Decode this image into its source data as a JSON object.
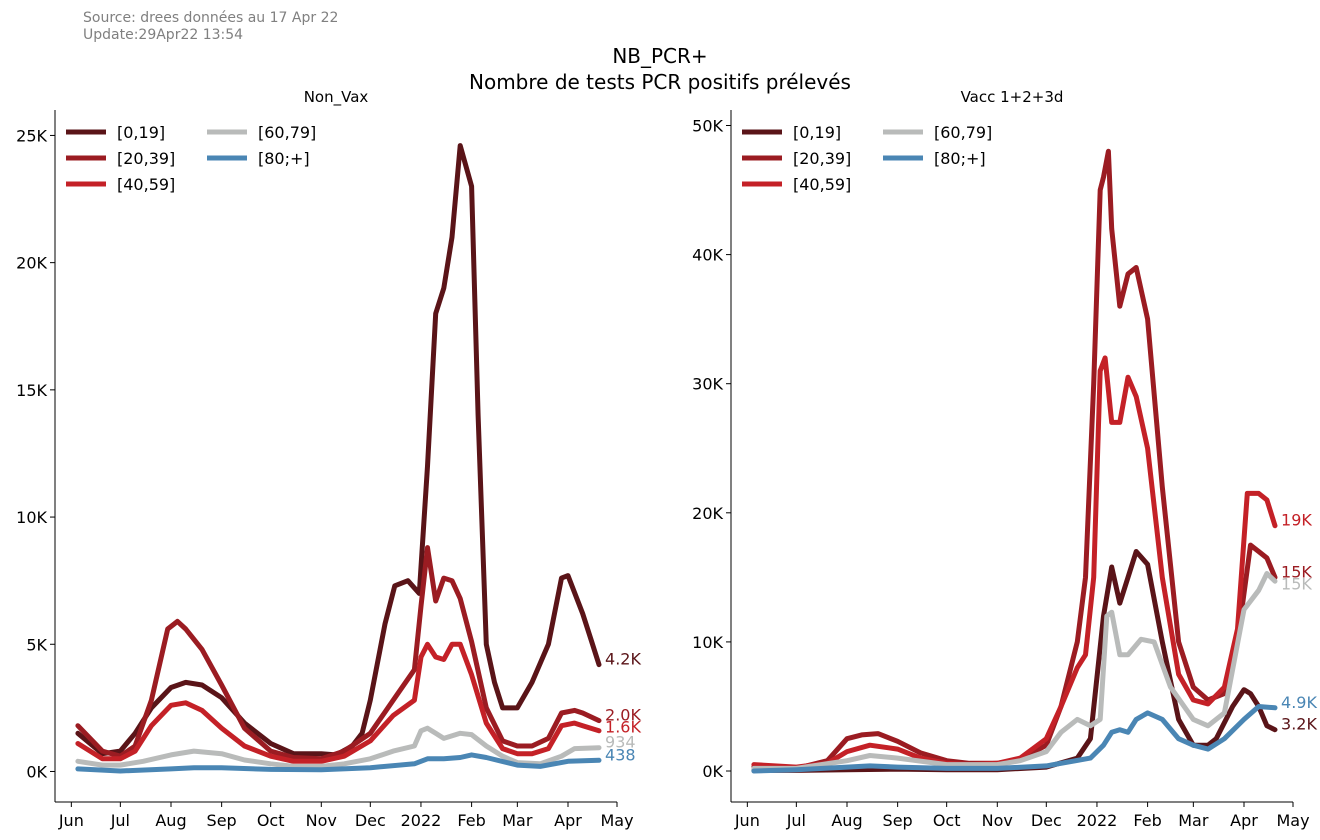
{
  "header": {
    "source": "Source: drees données au 17 Apr 22",
    "update": "Update:29Apr22 13:54",
    "title_line1": "NB_PCR+",
    "title_line2": "Nombre de tests PCR positifs prélevés"
  },
  "colors": {
    "[0,19]": "#5a1418",
    "[20,39]": "#9b1c22",
    "[40,59]": "#c42127",
    "[60,79]": "#b9bbba",
    "[80;+]": "#4a86b4"
  },
  "chart_data": [
    {
      "type": "line",
      "title": "Non_Vax",
      "xlabel": "",
      "ylabel": "",
      "x_ticks": [
        "Jun",
        "Jul",
        "Aug",
        "Sep",
        "Oct",
        "Nov",
        "Dec",
        "2022",
        "Feb",
        "Mar",
        "Apr",
        "May"
      ],
      "x_tick_dates": [
        "2021-06-01",
        "2021-07-01",
        "2021-08-01",
        "2021-09-01",
        "2021-10-01",
        "2021-11-01",
        "2021-12-01",
        "2022-01-01",
        "2022-02-01",
        "2022-03-01",
        "2022-04-01",
        "2022-05-01"
      ],
      "xlim": [
        "2021-05-22",
        "2022-05-01"
      ],
      "y_ticks": [
        0,
        5000,
        10000,
        15000,
        20000,
        25000
      ],
      "y_tick_labels": [
        "0K",
        "5K",
        "10K",
        "15K",
        "20K",
        "25K"
      ],
      "ylim": [
        -1200,
        26000
      ],
      "grid": false,
      "legend": "top-left",
      "series": [
        {
          "name": "[0,19]",
          "end_label": "4.2K",
          "x": [
            "2021-06-05",
            "2021-06-20",
            "2021-07-01",
            "2021-07-10",
            "2021-07-20",
            "2021-08-01",
            "2021-08-10",
            "2021-08-20",
            "2021-09-01",
            "2021-09-15",
            "2021-10-01",
            "2021-10-15",
            "2021-11-01",
            "2021-11-10",
            "2021-11-20",
            "2021-11-26",
            "2021-12-01",
            "2021-12-10",
            "2021-12-16",
            "2021-12-24",
            "2021-12-31",
            "2022-01-05",
            "2022-01-10",
            "2022-01-15",
            "2022-01-20",
            "2022-01-25",
            "2022-02-01",
            "2022-02-05",
            "2022-02-10",
            "2022-02-15",
            "2022-02-20",
            "2022-03-01",
            "2022-03-10",
            "2022-03-20",
            "2022-03-28",
            "2022-04-01",
            "2022-04-10",
            "2022-04-15",
            "2022-04-20"
          ],
          "y": [
            1500,
            700,
            800,
            1500,
            2500,
            3300,
            3500,
            3400,
            2900,
            1900,
            1100,
            700,
            700,
            650,
            1000,
            1500,
            2800,
            5800,
            7300,
            7500,
            7000,
            12000,
            18000,
            19000,
            21000,
            24600,
            23000,
            14000,
            5000,
            3500,
            2500,
            2500,
            3500,
            5000,
            7600,
            7700,
            6200,
            5200,
            4200
          ]
        },
        {
          "name": "[20,39]",
          "end_label": "2.0K",
          "x": [
            "2021-06-05",
            "2021-06-20",
            "2021-07-01",
            "2021-07-10",
            "2021-07-20",
            "2021-07-30",
            "2021-08-05",
            "2021-08-10",
            "2021-08-20",
            "2021-09-01",
            "2021-09-15",
            "2021-10-01",
            "2021-10-15",
            "2021-11-01",
            "2021-11-15",
            "2021-12-01",
            "2021-12-15",
            "2021-12-28",
            "2022-01-01",
            "2022-01-05",
            "2022-01-10",
            "2022-01-15",
            "2022-01-20",
            "2022-01-25",
            "2022-02-01",
            "2022-02-10",
            "2022-02-20",
            "2022-03-01",
            "2022-03-10",
            "2022-03-20",
            "2022-03-28",
            "2022-04-05",
            "2022-04-10",
            "2022-04-20"
          ],
          "y": [
            1800,
            800,
            600,
            1000,
            2800,
            5600,
            5900,
            5600,
            4800,
            3400,
            1700,
            800,
            550,
            500,
            800,
            1500,
            2800,
            4000,
            6500,
            8800,
            6700,
            7600,
            7500,
            6800,
            5100,
            2500,
            1200,
            1000,
            1000,
            1300,
            2300,
            2400,
            2300,
            2000
          ]
        },
        {
          "name": "[40,59]",
          "end_label": "1.6K",
          "x": [
            "2021-06-05",
            "2021-06-20",
            "2021-07-01",
            "2021-07-10",
            "2021-07-20",
            "2021-08-01",
            "2021-08-10",
            "2021-08-20",
            "2021-09-01",
            "2021-09-15",
            "2021-10-01",
            "2021-10-15",
            "2021-11-01",
            "2021-11-15",
            "2021-12-01",
            "2021-12-15",
            "2021-12-28",
            "2022-01-01",
            "2022-01-05",
            "2022-01-10",
            "2022-01-15",
            "2022-01-20",
            "2022-01-25",
            "2022-02-01",
            "2022-02-10",
            "2022-02-20",
            "2022-03-01",
            "2022-03-10",
            "2022-03-20",
            "2022-03-28",
            "2022-04-05",
            "2022-04-10",
            "2022-04-20"
          ],
          "y": [
            1100,
            500,
            500,
            800,
            1800,
            2600,
            2700,
            2400,
            1700,
            1000,
            600,
            400,
            400,
            600,
            1200,
            2200,
            2800,
            4500,
            5000,
            4500,
            4400,
            5000,
            5000,
            3800,
            1900,
            900,
            700,
            700,
            900,
            1800,
            1900,
            1800,
            1600
          ]
        },
        {
          "name": "[60,79]",
          "end_label": "934",
          "x": [
            "2021-06-05",
            "2021-06-20",
            "2021-07-01",
            "2021-07-15",
            "2021-08-01",
            "2021-08-15",
            "2021-09-01",
            "2021-09-15",
            "2021-10-01",
            "2021-10-15",
            "2021-11-01",
            "2021-11-15",
            "2021-12-01",
            "2021-12-15",
            "2021-12-28",
            "2022-01-01",
            "2022-01-05",
            "2022-01-10",
            "2022-01-15",
            "2022-01-25",
            "2022-02-01",
            "2022-02-10",
            "2022-02-20",
            "2022-03-01",
            "2022-03-15",
            "2022-03-28",
            "2022-04-05",
            "2022-04-20"
          ],
          "y": [
            400,
            250,
            250,
            400,
            650,
            800,
            700,
            450,
            300,
            200,
            200,
            300,
            500,
            800,
            1000,
            1600,
            1700,
            1500,
            1300,
            1500,
            1450,
            1000,
            600,
            350,
            300,
            600,
            900,
            934
          ]
        },
        {
          "name": "[80;+]",
          "end_label": "438",
          "x": [
            "2021-06-05",
            "2021-07-01",
            "2021-08-01",
            "2021-08-15",
            "2021-09-01",
            "2021-10-01",
            "2021-11-01",
            "2021-12-01",
            "2021-12-28",
            "2022-01-05",
            "2022-01-15",
            "2022-01-25",
            "2022-02-01",
            "2022-02-10",
            "2022-03-01",
            "2022-03-15",
            "2022-04-01",
            "2022-04-20"
          ],
          "y": [
            100,
            20,
            100,
            150,
            150,
            80,
            70,
            150,
            300,
            500,
            500,
            550,
            650,
            550,
            250,
            200,
            400,
            438
          ]
        }
      ]
    },
    {
      "type": "line",
      "title": "Vacc 1+2+3d",
      "xlabel": "",
      "ylabel": "",
      "x_ticks": [
        "Jun",
        "Jul",
        "Aug",
        "Sep",
        "Oct",
        "Nov",
        "Dec",
        "2022",
        "Feb",
        "Mar",
        "Apr",
        "May"
      ],
      "x_tick_dates": [
        "2021-06-01",
        "2021-07-01",
        "2021-08-01",
        "2021-09-01",
        "2021-10-01",
        "2021-11-01",
        "2021-12-01",
        "2022-01-01",
        "2022-02-01",
        "2022-03-01",
        "2022-04-01",
        "2022-05-01"
      ],
      "xlim": [
        "2021-05-22",
        "2022-05-01"
      ],
      "y_ticks": [
        0,
        10000,
        20000,
        30000,
        40000,
        50000
      ],
      "y_tick_labels": [
        "0K",
        "10K",
        "20K",
        "30K",
        "40K",
        "50K"
      ],
      "ylim": [
        -2400,
        51200
      ],
      "grid": false,
      "legend": "top-left",
      "series": [
        {
          "name": "[0,19]",
          "end_label": "3.2K",
          "x": [
            "2021-06-05",
            "2021-07-01",
            "2021-08-01",
            "2021-09-01",
            "2021-10-01",
            "2021-11-01",
            "2021-12-01",
            "2021-12-20",
            "2021-12-28",
            "2022-01-05",
            "2022-01-10",
            "2022-01-15",
            "2022-01-20",
            "2022-01-25",
            "2022-02-01",
            "2022-02-10",
            "2022-02-20",
            "2022-03-01",
            "2022-03-10",
            "2022-03-15",
            "2022-03-25",
            "2022-04-01",
            "2022-04-05",
            "2022-04-10",
            "2022-04-15",
            "2022-04-20"
          ],
          "y": [
            50,
            50,
            100,
            150,
            100,
            100,
            300,
            1000,
            2500,
            12000,
            15800,
            13000,
            15000,
            17000,
            16000,
            10000,
            4000,
            2000,
            2000,
            2500,
            5000,
            6300,
            6000,
            5000,
            3500,
            3200
          ]
        },
        {
          "name": "[20,39]",
          "end_label": "15K",
          "x": [
            "2021-06-05",
            "2021-07-01",
            "2021-07-20",
            "2021-08-01",
            "2021-08-10",
            "2021-08-20",
            "2021-09-01",
            "2021-09-15",
            "2021-10-01",
            "2021-10-15",
            "2021-11-01",
            "2021-11-15",
            "2021-12-01",
            "2021-12-10",
            "2021-12-20",
            "2021-12-25",
            "2021-12-30",
            "2022-01-03",
            "2022-01-05",
            "2022-01-08",
            "2022-01-10",
            "2022-01-15",
            "2022-01-20",
            "2022-01-25",
            "2022-02-01",
            "2022-02-10",
            "2022-02-20",
            "2022-03-01",
            "2022-03-10",
            "2022-03-20",
            "2022-03-28",
            "2022-04-05",
            "2022-04-10",
            "2022-04-15",
            "2022-04-20"
          ],
          "y": [
            300,
            200,
            800,
            2500,
            2800,
            2900,
            2300,
            1400,
            800,
            600,
            600,
            900,
            2000,
            5000,
            10000,
            15000,
            30000,
            45000,
            46000,
            48000,
            42000,
            36000,
            38500,
            39000,
            35000,
            22000,
            10000,
            6500,
            5500,
            6000,
            10000,
            17500,
            17000,
            16500,
            15000
          ]
        },
        {
          "name": "[40,59]",
          "end_label": "19K",
          "x": [
            "2021-06-05",
            "2021-07-01",
            "2021-07-20",
            "2021-08-01",
            "2021-08-15",
            "2021-09-01",
            "2021-09-15",
            "2021-10-01",
            "2021-10-15",
            "2021-11-01",
            "2021-11-15",
            "2021-12-01",
            "2021-12-10",
            "2021-12-20",
            "2021-12-25",
            "2021-12-30",
            "2022-01-03",
            "2022-01-06",
            "2022-01-10",
            "2022-01-15",
            "2022-01-20",
            "2022-01-25",
            "2022-02-01",
            "2022-02-10",
            "2022-02-20",
            "2022-03-01",
            "2022-03-10",
            "2022-03-20",
            "2022-03-28",
            "2022-04-03",
            "2022-04-10",
            "2022-04-15",
            "2022-04-20"
          ],
          "y": [
            500,
            300,
            600,
            1500,
            2000,
            1700,
            1000,
            600,
            500,
            600,
            1000,
            2500,
            5000,
            8000,
            9000,
            15000,
            31000,
            32000,
            27000,
            27000,
            30500,
            29000,
            25000,
            15000,
            7500,
            5500,
            5200,
            6500,
            11000,
            21500,
            21500,
            21000,
            19000
          ]
        },
        {
          "name": "[60,79]",
          "end_label": "15K",
          "x": [
            "2021-06-05",
            "2021-07-01",
            "2021-08-01",
            "2021-08-15",
            "2021-09-01",
            "2021-10-01",
            "2021-11-01",
            "2021-11-15",
            "2021-12-01",
            "2021-12-10",
            "2021-12-20",
            "2021-12-28",
            "2022-01-03",
            "2022-01-07",
            "2022-01-10",
            "2022-01-15",
            "2022-01-20",
            "2022-01-28",
            "2022-02-05",
            "2022-02-15",
            "2022-03-01",
            "2022-03-10",
            "2022-03-20",
            "2022-04-01",
            "2022-04-10",
            "2022-04-15",
            "2022-04-20"
          ],
          "y": [
            200,
            200,
            800,
            1200,
            1000,
            500,
            500,
            800,
            1500,
            3000,
            4000,
            3500,
            4000,
            12000,
            12300,
            9000,
            9000,
            10200,
            10000,
            6500,
            4000,
            3500,
            4500,
            12500,
            14000,
            15300,
            14700
          ]
        },
        {
          "name": "[80;+]",
          "end_label": "4.9K",
          "x": [
            "2021-06-05",
            "2021-07-01",
            "2021-08-01",
            "2021-08-15",
            "2021-09-01",
            "2021-10-01",
            "2021-11-01",
            "2021-12-01",
            "2021-12-28",
            "2022-01-05",
            "2022-01-10",
            "2022-01-15",
            "2022-01-20",
            "2022-01-25",
            "2022-02-01",
            "2022-02-10",
            "2022-02-20",
            "2022-03-01",
            "2022-03-10",
            "2022-03-20",
            "2022-04-01",
            "2022-04-10",
            "2022-04-20"
          ],
          "y": [
            0,
            100,
            300,
            400,
            300,
            200,
            200,
            400,
            1000,
            2000,
            3000,
            3200,
            3000,
            4000,
            4500,
            4000,
            2500,
            2000,
            1700,
            2500,
            4000,
            5000,
            4900
          ]
        }
      ]
    }
  ]
}
